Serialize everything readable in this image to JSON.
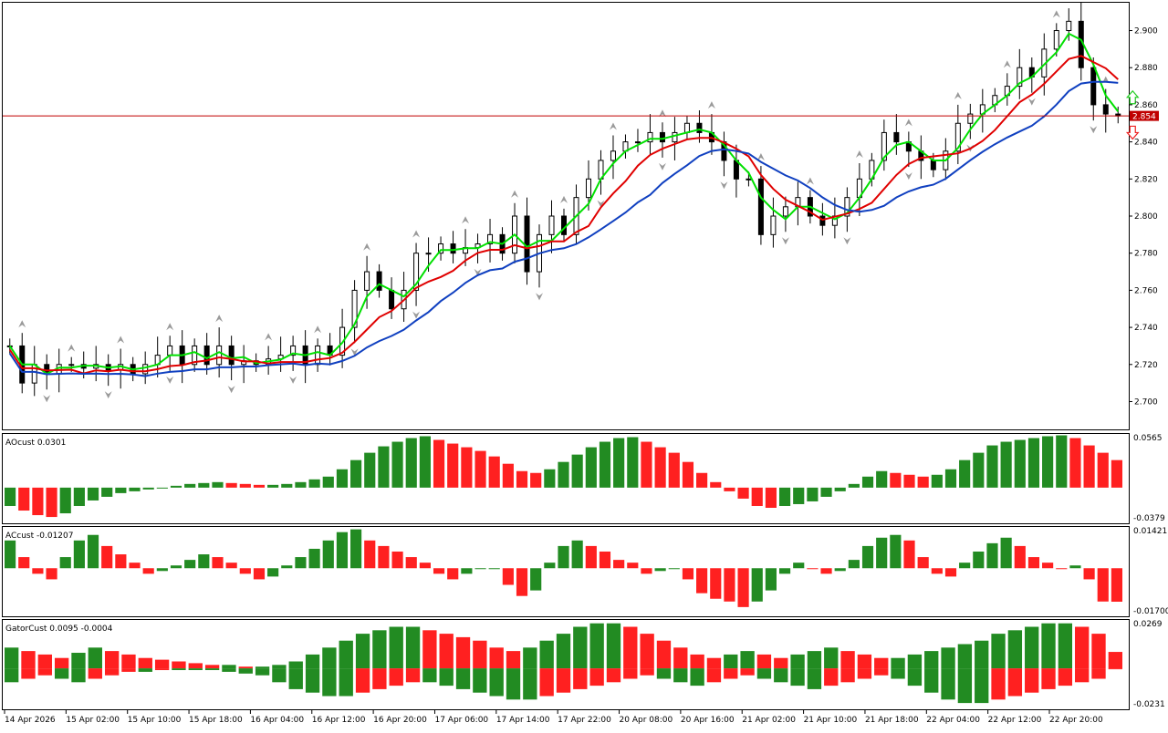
{
  "colors": {
    "bull_bar": "#228b22",
    "bear_bar": "#ff2020",
    "ma_fast": "#00e000",
    "ma_mid": "#e00000",
    "ma_slow": "#1040c0",
    "price_line": "#c00000",
    "price_badge_bg": "#c00000",
    "grid": "#000000",
    "fractal": "#9a9a9a",
    "arrow_up": "#22cc22",
    "arrow_down": "#ee2222"
  },
  "main": {
    "current_price": "2.854",
    "current_price_value": 2.854,
    "y_min": 2.685,
    "y_max": 2.915,
    "y_ticks": [
      "2.900",
      "2.880",
      "2.860",
      "2.840",
      "2.820",
      "2.800",
      "2.780",
      "2.760",
      "2.740",
      "2.720",
      "2.700"
    ],
    "y_tick_values": [
      2.9,
      2.88,
      2.86,
      2.84,
      2.82,
      2.8,
      2.78,
      2.76,
      2.74,
      2.72,
      2.7
    ]
  },
  "ao": {
    "label": "AOcust 0.0301",
    "max_label": "0.0565",
    "min_label": "-0.0379",
    "max": 0.0565,
    "min": -0.0379
  },
  "ac": {
    "label": "ACcust -0.01207",
    "max_label": "0.01421",
    "min_label": "-0.01700",
    "max": 0.01421,
    "min": -0.017
  },
  "gator": {
    "label": "GatorCust 0.0095 -0.0004",
    "max_label": "0.0269",
    "min_label": "-0.0231",
    "max": 0.0269,
    "min": -0.0231
  },
  "x_labels": [
    "14 Apr 2026",
    "15 Apr 02:00",
    "15 Apr 10:00",
    "15 Apr 18:00",
    "16 Apr 04:00",
    "16 Apr 12:00",
    "16 Apr 20:00",
    "17 Apr 06:00",
    "17 Apr 14:00",
    "17 Apr 22:00",
    "20 Apr 08:00",
    "20 Apr 16:00",
    "21 Apr 02:00",
    "21 Apr 10:00",
    "21 Apr 18:00",
    "22 Apr 04:00",
    "22 Apr 12:00",
    "22 Apr 20:00"
  ],
  "chart_data": {
    "type": "candlestick",
    "price_series": [
      2.73,
      2.71,
      2.72,
      2.715,
      2.72,
      2.72,
      2.718,
      2.72,
      2.717,
      2.72,
      2.715,
      2.72,
      2.725,
      2.73,
      2.72,
      2.73,
      2.72,
      2.73,
      2.72,
      2.722,
      2.72,
      2.723,
      2.725,
      2.73,
      2.72,
      2.73,
      2.725,
      2.74,
      2.76,
      2.77,
      2.76,
      2.75,
      2.76,
      2.78,
      2.78,
      2.785,
      2.78,
      2.783,
      2.785,
      2.79,
      2.78,
      2.8,
      2.77,
      2.79,
      2.8,
      2.79,
      2.81,
      2.82,
      2.83,
      2.835,
      2.84,
      2.84,
      2.845,
      2.84,
      2.845,
      2.85,
      2.845,
      2.84,
      2.83,
      2.82,
      2.82,
      2.79,
      2.8,
      2.805,
      2.81,
      2.8,
      2.795,
      2.8,
      2.81,
      2.82,
      2.83,
      2.845,
      2.84,
      2.835,
      2.83,
      2.825,
      2.835,
      2.85,
      2.855,
      2.86,
      2.865,
      2.87,
      2.88,
      2.875,
      2.89,
      2.9,
      2.905,
      2.88,
      2.86,
      2.855,
      2.854
    ],
    "ao_values": [
      -0.02,
      -0.025,
      -0.03,
      -0.032,
      -0.028,
      -0.02,
      -0.014,
      -0.01,
      -0.006,
      -0.004,
      -0.002,
      0.0,
      0.002,
      0.004,
      0.005,
      0.006,
      0.005,
      0.004,
      0.003,
      0.003,
      0.004,
      0.006,
      0.009,
      0.012,
      0.02,
      0.03,
      0.038,
      0.045,
      0.05,
      0.054,
      0.056,
      0.052,
      0.048,
      0.044,
      0.04,
      0.034,
      0.026,
      0.018,
      0.016,
      0.02,
      0.028,
      0.036,
      0.044,
      0.05,
      0.054,
      0.055,
      0.05,
      0.044,
      0.038,
      0.028,
      0.016,
      0.006,
      -0.004,
      -0.012,
      -0.02,
      -0.022,
      -0.02,
      -0.018,
      -0.015,
      -0.01,
      -0.004,
      0.004,
      0.012,
      0.018,
      0.016,
      0.014,
      0.012,
      0.014,
      0.02,
      0.03,
      0.038,
      0.046,
      0.05,
      0.052,
      0.054,
      0.056,
      0.057,
      0.054,
      0.046,
      0.038,
      0.03
    ],
    "ac_values": [
      0.01,
      0.004,
      -0.002,
      -0.004,
      0.004,
      0.01,
      0.012,
      0.008,
      0.005,
      0.002,
      -0.002,
      -0.001,
      0.001,
      0.003,
      0.005,
      0.004,
      0.002,
      -0.002,
      -0.004,
      -0.003,
      0.001,
      0.004,
      0.007,
      0.01,
      0.013,
      0.014,
      0.01,
      0.008,
      0.006,
      0.004,
      0.002,
      -0.002,
      -0.004,
      -0.002,
      0.0,
      0.0,
      -0.006,
      -0.01,
      -0.008,
      0.002,
      0.008,
      0.01,
      0.008,
      0.006,
      0.003,
      0.002,
      -0.002,
      -0.001,
      0.0,
      -0.004,
      -0.009,
      -0.011,
      -0.012,
      -0.014,
      -0.012,
      -0.008,
      -0.002,
      0.002,
      0.0,
      -0.002,
      -0.001,
      0.003,
      0.008,
      0.011,
      0.012,
      0.01,
      0.004,
      -0.002,
      -0.003,
      0.002,
      0.006,
      0.009,
      0.011,
      0.008,
      0.004,
      0.002,
      0.0,
      0.001,
      -0.004,
      -0.012,
      -0.01207
    ],
    "gator_upper": [
      0.012,
      0.01,
      0.008,
      0.006,
      0.009,
      0.012,
      0.01,
      0.008,
      0.006,
      0.005,
      0.004,
      0.003,
      0.002,
      0.002,
      0.001,
      0.001,
      0.002,
      0.004,
      0.008,
      0.012,
      0.016,
      0.02,
      0.022,
      0.024,
      0.024,
      0.022,
      0.02,
      0.018,
      0.016,
      0.012,
      0.01,
      0.012,
      0.016,
      0.02,
      0.024,
      0.026,
      0.026,
      0.024,
      0.02,
      0.016,
      0.012,
      0.008,
      0.006,
      0.008,
      0.01,
      0.008,
      0.006,
      0.008,
      0.01,
      0.012,
      0.01,
      0.008,
      0.006,
      0.006,
      0.008,
      0.01,
      0.012,
      0.014,
      0.016,
      0.02,
      0.022,
      0.024,
      0.026,
      0.026,
      0.024,
      0.02,
      0.0095
    ],
    "gator_lower": [
      -0.008,
      -0.006,
      -0.004,
      -0.006,
      -0.008,
      -0.006,
      -0.004,
      -0.002,
      -0.002,
      -0.001,
      -0.001,
      -0.001,
      -0.001,
      -0.002,
      -0.003,
      -0.004,
      -0.008,
      -0.012,
      -0.014,
      -0.016,
      -0.016,
      -0.014,
      -0.012,
      -0.01,
      -0.008,
      -0.008,
      -0.01,
      -0.012,
      -0.014,
      -0.016,
      -0.018,
      -0.018,
      -0.016,
      -0.014,
      -0.012,
      -0.01,
      -0.008,
      -0.006,
      -0.004,
      -0.006,
      -0.008,
      -0.01,
      -0.008,
      -0.006,
      -0.004,
      -0.006,
      -0.008,
      -0.01,
      -0.012,
      -0.01,
      -0.008,
      -0.006,
      -0.004,
      -0.006,
      -0.01,
      -0.014,
      -0.018,
      -0.02,
      -0.02,
      -0.018,
      -0.016,
      -0.014,
      -0.012,
      -0.01,
      -0.008,
      -0.006,
      -0.0004
    ]
  }
}
